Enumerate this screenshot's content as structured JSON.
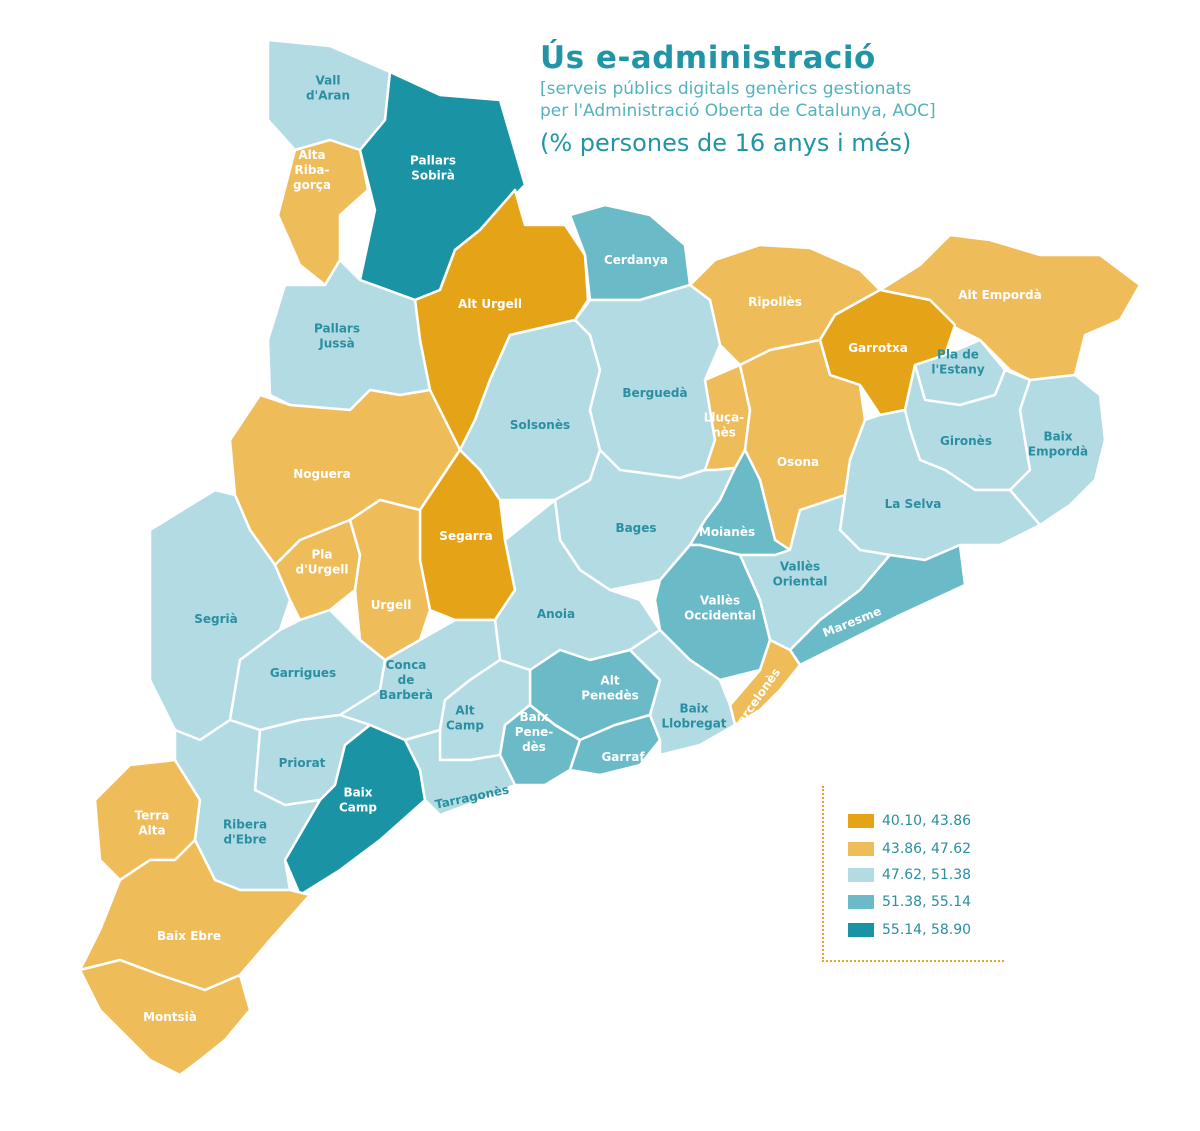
{
  "title": "Ús e-administració",
  "subtitle_line1": "[serveis públics digitals genèrics gestionats",
  "subtitle_line2": "per l'Administració Oberta de Catalunya, AOC]",
  "unit": "(% persones de 16 anys i més)",
  "legend": [
    {
      "label": "40.10, 43.86",
      "color": "#e5a318"
    },
    {
      "label": "43.86, 47.62",
      "color": "#efbc5a"
    },
    {
      "label": "47.62, 51.38",
      "color": "#b2dbe3"
    },
    {
      "label": "51.38, 55.14",
      "color": "#6bbac8"
    },
    {
      "label": "55.14, 58.90",
      "color": "#1a93a5"
    }
  ],
  "comarques": [
    {
      "id": "vall-d-aran",
      "lines": [
        "Vall",
        "d'Aran"
      ],
      "class": 2
    },
    {
      "id": "pallars-sobira",
      "lines": [
        "Pallars",
        "Sobirà"
      ],
      "class": 4
    },
    {
      "id": "alta-ribagorca",
      "lines": [
        "Alta",
        "Riba-",
        "gorça"
      ],
      "class": 1
    },
    {
      "id": "alt-urgell",
      "lines": [
        "Alt Urgell"
      ],
      "class": 0
    },
    {
      "id": "cerdanya",
      "lines": [
        "Cerdanya"
      ],
      "class": 3
    },
    {
      "id": "ripolles",
      "lines": [
        "Ripollès"
      ],
      "class": 1
    },
    {
      "id": "alt-emporda",
      "lines": [
        "Alt Empordà"
      ],
      "class": 1
    },
    {
      "id": "garrotxa",
      "lines": [
        "Garrotxa"
      ],
      "class": 0
    },
    {
      "id": "pla-de-l-estany",
      "lines": [
        "Pla de",
        "l'Estany"
      ],
      "class": 2
    },
    {
      "id": "pallars-jussa",
      "lines": [
        "Pallars",
        "Jussà"
      ],
      "class": 2
    },
    {
      "id": "solsones",
      "lines": [
        "Solsonès"
      ],
      "class": 2
    },
    {
      "id": "bergueda",
      "lines": [
        "Berguedà"
      ],
      "class": 2
    },
    {
      "id": "llucanes",
      "lines": [
        "Lluça-",
        "nès"
      ],
      "class": 1
    },
    {
      "id": "osona",
      "lines": [
        "Osona"
      ],
      "class": 1
    },
    {
      "id": "girones",
      "lines": [
        "Gironès"
      ],
      "class": 2
    },
    {
      "id": "baix-emporda",
      "lines": [
        "Baix",
        "Empordà"
      ],
      "class": 2
    },
    {
      "id": "noguera",
      "lines": [
        "Noguera"
      ],
      "class": 1
    },
    {
      "id": "segarra",
      "lines": [
        "Segarra"
      ],
      "class": 0
    },
    {
      "id": "bages",
      "lines": [
        "Bages"
      ],
      "class": 2
    },
    {
      "id": "moianes",
      "lines": [
        "Moianès"
      ],
      "class": 3
    },
    {
      "id": "la-selva",
      "lines": [
        "La Selva"
      ],
      "class": 2
    },
    {
      "id": "pla-d-urgell",
      "lines": [
        "Pla",
        "d'Urgell"
      ],
      "class": 1
    },
    {
      "id": "urgell",
      "lines": [
        "Urgell"
      ],
      "class": 1
    },
    {
      "id": "segria",
      "lines": [
        "Segrià"
      ],
      "class": 2
    },
    {
      "id": "anoia",
      "lines": [
        "Anoia"
      ],
      "class": 2
    },
    {
      "id": "valles-oriental",
      "lines": [
        "Vallès",
        "Oriental"
      ],
      "class": 2
    },
    {
      "id": "valles-occidental",
      "lines": [
        "Vallès",
        "Occidental"
      ],
      "class": 3
    },
    {
      "id": "maresme",
      "lines": [
        "Maresme"
      ],
      "class": 3
    },
    {
      "id": "garrigues",
      "lines": [
        "Garrigues"
      ],
      "class": 2
    },
    {
      "id": "conca-de-barbera",
      "lines": [
        "Conca",
        "de",
        "Barberà"
      ],
      "class": 2
    },
    {
      "id": "alt-penedes",
      "lines": [
        "Alt",
        "Penedès"
      ],
      "class": 3
    },
    {
      "id": "barcelones",
      "lines": [
        "Barcelonès"
      ],
      "class": 1
    },
    {
      "id": "alt-camp",
      "lines": [
        "Alt",
        "Camp"
      ],
      "class": 2
    },
    {
      "id": "baix-penedes",
      "lines": [
        "Baix",
        "Pene-",
        "dès"
      ],
      "class": 3
    },
    {
      "id": "garraf",
      "lines": [
        "Garraf"
      ],
      "class": 3
    },
    {
      "id": "baix-llobregat",
      "lines": [
        "Baix",
        "Llobregat"
      ],
      "class": 2
    },
    {
      "id": "priorat",
      "lines": [
        "Priorat"
      ],
      "class": 2
    },
    {
      "id": "baix-camp",
      "lines": [
        "Baix",
        "Camp"
      ],
      "class": 4
    },
    {
      "id": "tarragones",
      "lines": [
        "Tarragonès"
      ],
      "class": 2
    },
    {
      "id": "terra-alta",
      "lines": [
        "Terra",
        "Alta"
      ],
      "class": 1
    },
    {
      "id": "ribera-d-ebre",
      "lines": [
        "Ribera",
        "d'Ebre"
      ],
      "class": 2
    },
    {
      "id": "baix-ebre",
      "lines": [
        "Baix Ebre"
      ],
      "class": 1
    },
    {
      "id": "montsia",
      "lines": [
        "Montsià"
      ],
      "class": 1
    }
  ]
}
